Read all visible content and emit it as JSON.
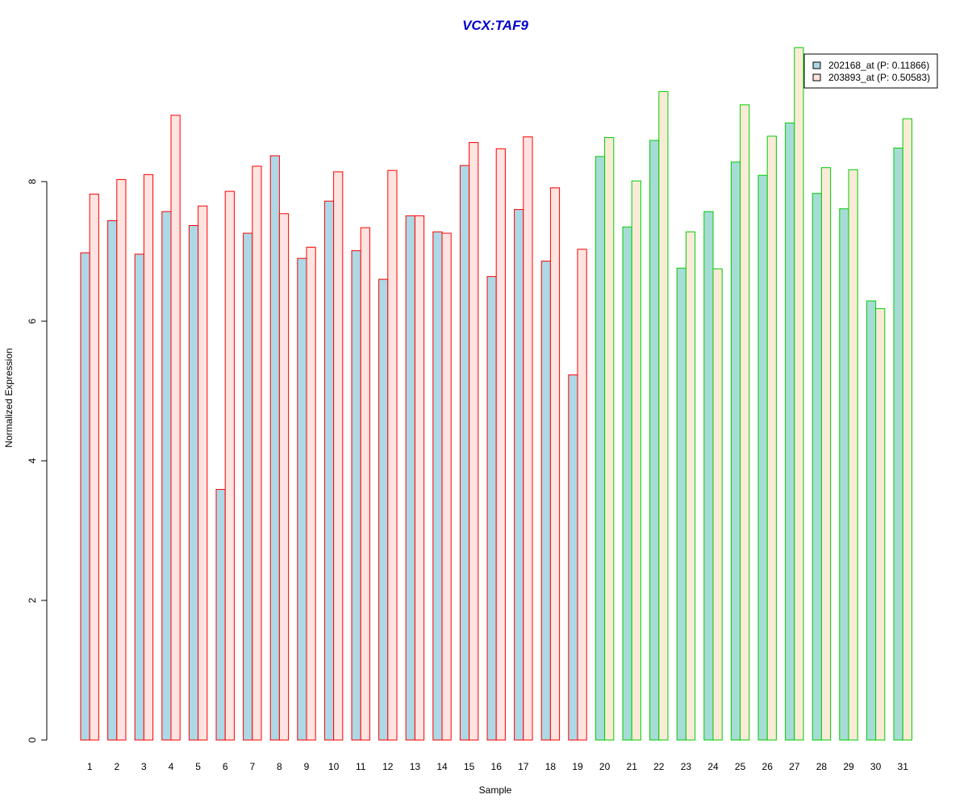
{
  "chart_data": {
    "type": "bar",
    "title": "VCX:TAF9",
    "xlabel": "Sample",
    "ylabel": "Normalized Expression",
    "ylim": [
      0,
      9.9
    ],
    "yticks": [
      0,
      2,
      4,
      6,
      8
    ],
    "grid": false,
    "legend_position": "top-right",
    "categories": [
      "1",
      "2",
      "3",
      "4",
      "5",
      "6",
      "7",
      "8",
      "9",
      "10",
      "11",
      "12",
      "13",
      "14",
      "15",
      "16",
      "17",
      "18",
      "19",
      "20",
      "21",
      "22",
      "23",
      "24",
      "25",
      "26",
      "27",
      "28",
      "29",
      "30",
      "31"
    ],
    "series": [
      {
        "name": "202168_at (P: 0.11866)",
        "values": [
          6.98,
          7.44,
          6.96,
          7.57,
          7.37,
          3.59,
          7.26,
          8.37,
          6.9,
          7.72,
          7.01,
          6.6,
          7.51,
          7.28,
          8.23,
          6.64,
          7.6,
          6.86,
          5.23,
          8.36,
          7.35,
          8.59,
          6.76,
          7.57,
          8.28,
          8.09,
          8.84,
          7.83,
          7.61,
          6.29,
          8.48
        ]
      },
      {
        "name": "203893_at (P: 0.50583)",
        "values": [
          7.82,
          8.03,
          8.1,
          8.95,
          7.65,
          7.86,
          8.22,
          7.54,
          7.06,
          8.14,
          7.34,
          8.16,
          7.51,
          7.26,
          8.56,
          8.47,
          8.64,
          7.91,
          7.03,
          8.63,
          8.01,
          9.29,
          7.28,
          6.75,
          9.1,
          8.65,
          9.92,
          8.2,
          8.17,
          6.18,
          8.9
        ]
      }
    ],
    "group_split_after": 19,
    "colors": {
      "title": "#0000cc",
      "series1_fill": "#add8e6",
      "series2_fill_group1": "#ffe4e1",
      "series2_fill_group2": "#faebd7",
      "group1_border": "#ff0000",
      "group2_border": "#00cc00",
      "series1_fill_group2": "#a6dcd6",
      "legend_swatch1": "#add8e6",
      "legend_swatch2": "#ffe4e1"
    }
  }
}
